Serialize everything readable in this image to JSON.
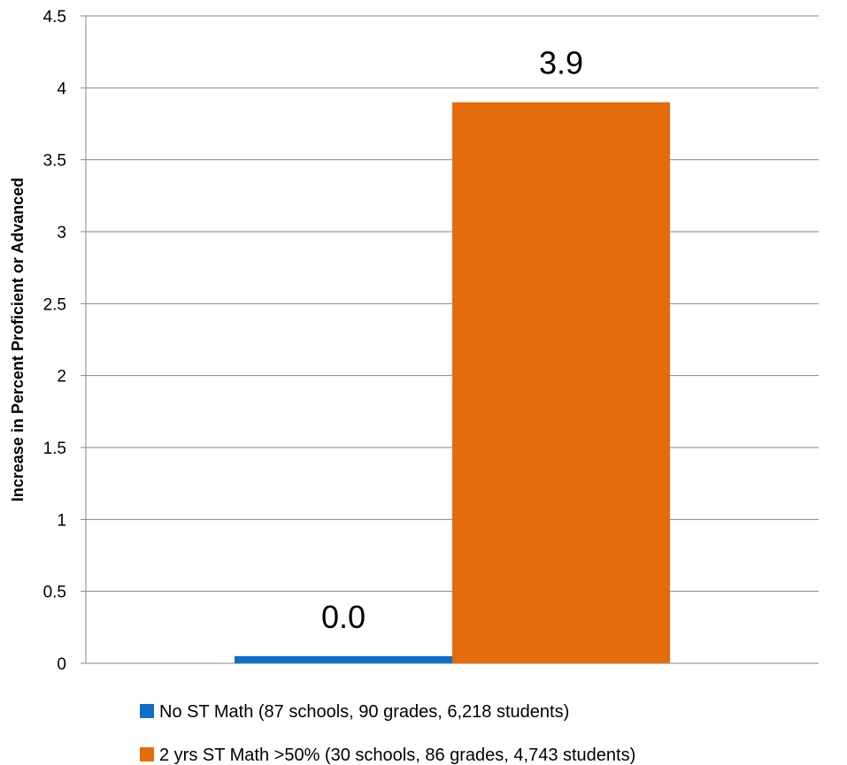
{
  "chart_data": {
    "type": "bar",
    "ylabel": "Increase in Percent Proficient or Advanced",
    "xlabel": "",
    "ylim": [
      0,
      4.5
    ],
    "y_ticks": [
      "0",
      "0.5",
      "1",
      "1.5",
      "2",
      "2.5",
      "3",
      "3.5",
      "4",
      "4.5"
    ],
    "grid": true,
    "legend_position": "bottom",
    "series": [
      {
        "name": "No ST Math (87 schools, 90 grades, 6,218 students)",
        "values": [
          0.05
        ],
        "data_label": "0.0",
        "color": "#0f6fc6"
      },
      {
        "name": "2 yrs ST Math >50% (30 schools, 86 grades, 4,743 students)",
        "values": [
          3.9
        ],
        "data_label": "3.9",
        "color": "#e46c0a"
      }
    ]
  }
}
